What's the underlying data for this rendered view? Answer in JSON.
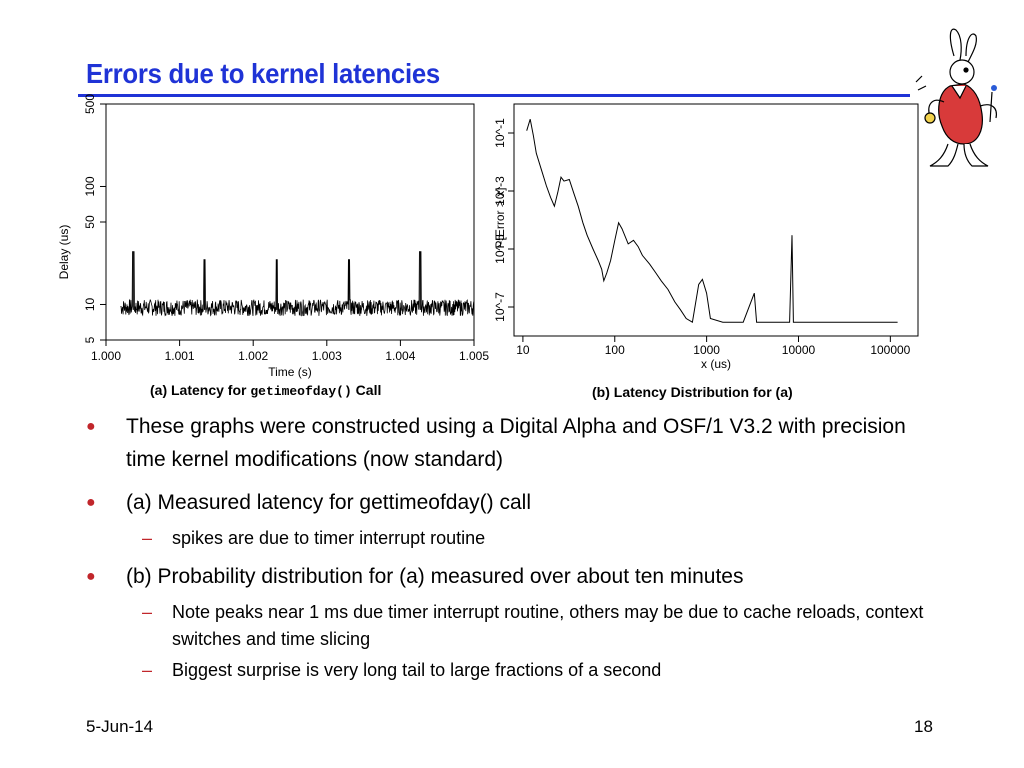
{
  "slide": {
    "title": "Errors due to kernel latencies",
    "footer_date": "5-Jun-14",
    "footer_page": "18"
  },
  "colors": {
    "title": "#1f33d6",
    "bullet": "#c1262b",
    "text": "#000000"
  },
  "captions": {
    "a_prefix": "(a) Latency for ",
    "a_code": "getimeofday()",
    "a_suffix": " Call",
    "b": "(b) Latency Distribution for (a)"
  },
  "bullets": [
    {
      "text": "These graphs were constructed using a Digital Alpha and OSF/1 V3.2 with precision time kernel modifications (now standard)",
      "subs": []
    },
    {
      "text": "(a) Measured latency for gettimeofday() call",
      "subs": [
        "spikes are due to timer interrupt routine"
      ]
    },
    {
      "text": "(b) Probability distribution for (a) measured over about ten minutes",
      "subs": [
        "Note peaks near 1 ms due timer interrupt routine, others may be due to cache reloads, context switches and time slicing",
        "Biggest surprise is very long tail to large fractions of a second"
      ]
    }
  ],
  "chart_data": [
    {
      "type": "line",
      "xlabel": "Time (s)",
      "ylabel": "Delay (us)",
      "y_scale": "log",
      "xlim": [
        1.0,
        1.005
      ],
      "ylim": [
        5,
        500
      ],
      "x_tick_labels": [
        "1.000",
        "1.001",
        "1.002",
        "1.003",
        "1.004",
        "1.005"
      ],
      "x_ticks": [
        1.0,
        1.001,
        1.002,
        1.003,
        1.004,
        1.005
      ],
      "y_tick_labels": [
        "5",
        "10",
        "50",
        "100",
        "500"
      ],
      "y_ticks": [
        5,
        10,
        50,
        100,
        500
      ],
      "baseline_us": 9,
      "noise_range_us": [
        8,
        11
      ],
      "spikes": [
        {
          "x": 1.00037,
          "y": 28
        },
        {
          "x": 1.00134,
          "y": 24
        },
        {
          "x": 1.00232,
          "y": 24
        },
        {
          "x": 1.0033,
          "y": 24
        },
        {
          "x": 1.00427,
          "y": 28
        }
      ],
      "grid": false
    },
    {
      "type": "line",
      "xlabel": "x (us)",
      "ylabel": "P[Error > x]",
      "x_scale": "log",
      "y_scale": "log",
      "xlim": [
        8,
        200000
      ],
      "ylim": [
        1e-08,
        1
      ],
      "x_tick_labels": [
        "10",
        "100",
        "1000",
        "10000",
        "100000"
      ],
      "x_ticks": [
        10,
        100,
        1000,
        10000,
        100000
      ],
      "y_tick_labels": [
        "10^-1",
        "10^-3",
        "10^-5",
        "10^-7"
      ],
      "y_ticks": [
        0.1,
        0.001,
        1e-05,
        1e-07
      ],
      "points": [
        [
          11,
          0.12
        ],
        [
          12,
          0.3
        ],
        [
          13,
          0.08
        ],
        [
          14,
          0.02
        ],
        [
          16,
          0.005
        ],
        [
          18,
          0.0015
        ],
        [
          20,
          0.0006
        ],
        [
          22,
          0.0003
        ],
        [
          24,
          0.0009
        ],
        [
          26,
          0.003
        ],
        [
          28,
          0.0022
        ],
        [
          32,
          0.0025
        ],
        [
          36,
          0.0008
        ],
        [
          40,
          0.0003
        ],
        [
          45,
          8e-05
        ],
        [
          50,
          3e-05
        ],
        [
          58,
          1e-05
        ],
        [
          66,
          4e-06
        ],
        [
          72,
          2e-06
        ],
        [
          76,
          8e-07
        ],
        [
          82,
          1.5e-06
        ],
        [
          90,
          4e-06
        ],
        [
          100,
          2e-05
        ],
        [
          110,
          8e-05
        ],
        [
          120,
          5e-05
        ],
        [
          140,
          1.5e-05
        ],
        [
          160,
          2e-05
        ],
        [
          180,
          1.2e-05
        ],
        [
          200,
          6e-06
        ],
        [
          240,
          3e-06
        ],
        [
          280,
          1.5e-06
        ],
        [
          320,
          8e-07
        ],
        [
          380,
          4e-07
        ],
        [
          450,
          1.5e-07
        ],
        [
          520,
          8e-08
        ],
        [
          600,
          4e-08
        ],
        [
          700,
          3e-08
        ],
        [
          820,
          6e-07
        ],
        [
          900,
          9e-07
        ],
        [
          1000,
          3e-07
        ],
        [
          1100,
          4e-08
        ],
        [
          1500,
          3e-08
        ],
        [
          2500,
          3e-08
        ],
        [
          3300,
          3e-07
        ],
        [
          3500,
          3e-08
        ],
        [
          8000,
          3e-08
        ],
        [
          8500,
          3e-05
        ],
        [
          8800,
          3e-08
        ],
        [
          120000,
          3e-08
        ]
      ],
      "grid": false
    }
  ]
}
